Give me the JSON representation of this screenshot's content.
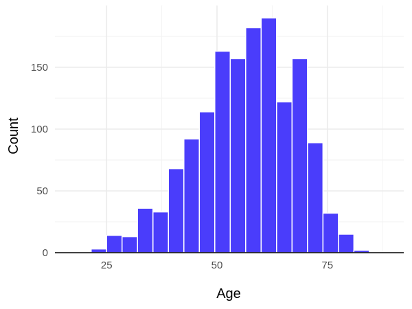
{
  "chart_data": {
    "type": "bar",
    "xlabel": "Age",
    "ylabel": "Count",
    "bin_width": 3.5,
    "bins": [
      {
        "x0": 14.5,
        "x1": 18.0,
        "count": 0
      },
      {
        "x0": 18.0,
        "x1": 21.5,
        "count": 0
      },
      {
        "x0": 21.5,
        "x1": 25.0,
        "count": 3
      },
      {
        "x0": 25.0,
        "x1": 28.5,
        "count": 14
      },
      {
        "x0": 28.5,
        "x1": 32.0,
        "count": 13
      },
      {
        "x0": 32.0,
        "x1": 35.5,
        "count": 36
      },
      {
        "x0": 35.5,
        "x1": 39.0,
        "count": 33
      },
      {
        "x0": 39.0,
        "x1": 42.5,
        "count": 68
      },
      {
        "x0": 42.5,
        "x1": 46.0,
        "count": 92
      },
      {
        "x0": 46.0,
        "x1": 49.5,
        "count": 114
      },
      {
        "x0": 49.5,
        "x1": 53.0,
        "count": 163
      },
      {
        "x0": 53.0,
        "x1": 56.5,
        "count": 157
      },
      {
        "x0": 56.5,
        "x1": 60.0,
        "count": 182
      },
      {
        "x0": 60.0,
        "x1": 63.5,
        "count": 190
      },
      {
        "x0": 63.5,
        "x1": 67.0,
        "count": 122
      },
      {
        "x0": 67.0,
        "x1": 70.5,
        "count": 157
      },
      {
        "x0": 70.5,
        "x1": 74.0,
        "count": 89
      },
      {
        "x0": 74.0,
        "x1": 77.5,
        "count": 32
      },
      {
        "x0": 77.5,
        "x1": 81.0,
        "count": 15
      },
      {
        "x0": 81.0,
        "x1": 84.5,
        "count": 2
      }
    ],
    "xlim": [
      13.3,
      92.3
    ],
    "ylim": [
      0,
      200
    ],
    "x_ticks": [
      25,
      50,
      75
    ],
    "y_ticks": [
      0,
      50,
      100,
      150
    ],
    "grid": true,
    "colors": {
      "bar_fill": "#4a3dfb",
      "bar_edge": "#ffffff",
      "background": "#ffffff"
    }
  }
}
